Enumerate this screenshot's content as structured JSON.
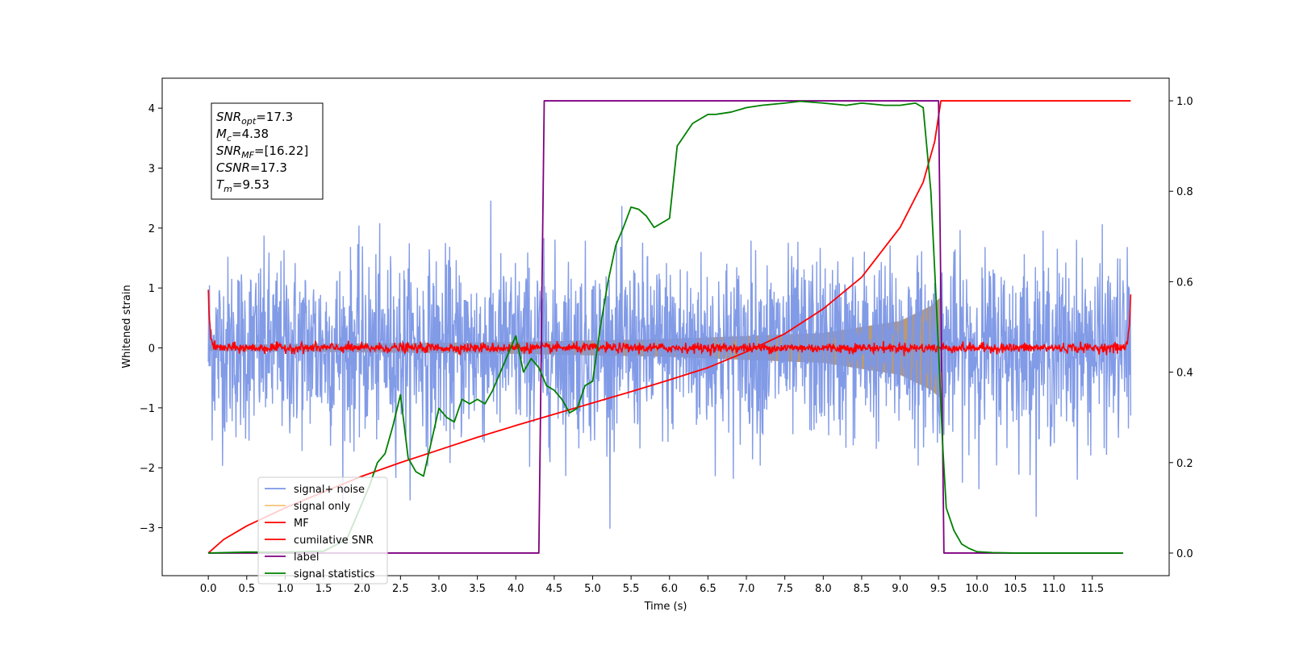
{
  "chart_data": {
    "type": "line",
    "xlabel": "Time (s)",
    "ylabel": "Whitened strain",
    "xlim": [
      -0.6,
      12.5
    ],
    "ylim": [
      -3.8,
      4.5
    ],
    "y2lim": [
      -0.05,
      1.05
    ],
    "x_ticks": [
      0.0,
      0.5,
      1.0,
      1.5,
      2.0,
      2.5,
      3.0,
      3.5,
      4.0,
      4.5,
      5.0,
      5.5,
      6.0,
      6.5,
      7.0,
      7.5,
      8.0,
      8.5,
      9.0,
      9.5,
      10.0,
      10.5,
      11.0,
      11.5
    ],
    "x_tick_labels": [
      "0.0",
      "0.5",
      "1.0",
      "1.5",
      "2.0",
      "2.5",
      "3.0",
      "3.5",
      "4.0",
      "4.5",
      "5.0",
      "5.5",
      "6.0",
      "6.5",
      "7.0",
      "7.5",
      "8.0",
      "8.5",
      "9.0",
      "9.5",
      "10.0",
      "10.5",
      "11.0",
      "11.5"
    ],
    "y_ticks": [
      -3,
      -2,
      -1,
      0,
      1,
      2,
      3,
      4
    ],
    "y_tick_labels": [
      "−3",
      "−2",
      "−1",
      "0",
      "1",
      "2",
      "3",
      "4"
    ],
    "y2_ticks": [
      0.0,
      0.2,
      0.4,
      0.6,
      0.8,
      1.0
    ],
    "y2_tick_labels": [
      "0.0",
      "0.2",
      "0.4",
      "0.6",
      "0.8",
      "1.0"
    ],
    "grid": false,
    "legend_position": "bottom-left",
    "series": [
      {
        "name": "signal+ noise",
        "color": "#7b96e6",
        "axis": "left",
        "kind": "noise",
        "x_range": [
          0,
          12
        ],
        "amplitude_std": 0.75
      },
      {
        "name": "signal only",
        "color": "#f7c27a",
        "axis": "left",
        "kind": "chirp_envelope",
        "x_range": [
          0,
          9.53
        ],
        "envelope": [
          [
            0,
            0.05
          ],
          [
            4.0,
            0.1
          ],
          [
            6.0,
            0.15
          ],
          [
            8.0,
            0.25
          ],
          [
            9.0,
            0.45
          ],
          [
            9.4,
            0.7
          ],
          [
            9.53,
            0.85
          ]
        ]
      },
      {
        "name": "MF",
        "color": "#ff0000",
        "axis": "left",
        "kind": "noise",
        "x_range": [
          0,
          12
        ],
        "amplitude_std": 0.04,
        "edge_values": [
          [
            0.0,
            1.0
          ],
          [
            12.0,
            0.9
          ]
        ]
      },
      {
        "name": "cumilative SNR",
        "color": "#ff0000",
        "axis": "right",
        "x": [
          0.0,
          0.2,
          0.5,
          1.0,
          1.5,
          2.0,
          2.5,
          3.0,
          3.5,
          4.0,
          4.5,
          5.0,
          5.5,
          6.0,
          6.5,
          7.0,
          7.5,
          8.0,
          8.5,
          9.0,
          9.3,
          9.45,
          9.53,
          10.0,
          12.0
        ],
        "values": [
          0.0,
          0.03,
          0.06,
          0.1,
          0.135,
          0.17,
          0.2,
          0.228,
          0.256,
          0.282,
          0.307,
          0.332,
          0.357,
          0.383,
          0.41,
          0.445,
          0.485,
          0.54,
          0.61,
          0.72,
          0.82,
          0.91,
          1.0,
          1.0,
          1.0
        ]
      },
      {
        "name": "label",
        "color": "#800080",
        "axis": "right",
        "x": [
          0.0,
          4.3,
          4.37,
          9.5,
          9.57,
          11.9
        ],
        "values": [
          0.0,
          0.0,
          1.0,
          1.0,
          0.0,
          0.0
        ]
      },
      {
        "name": "signal statistics",
        "color": "#008000",
        "axis": "right",
        "x": [
          0.0,
          0.5,
          1.0,
          1.5,
          1.8,
          2.0,
          2.1,
          2.2,
          2.25,
          2.3,
          2.4,
          2.5,
          2.6,
          2.7,
          2.8,
          3.0,
          3.1,
          3.2,
          3.3,
          3.4,
          3.5,
          3.6,
          3.7,
          3.8,
          3.9,
          4.0,
          4.1,
          4.2,
          4.3,
          4.4,
          4.5,
          4.6,
          4.7,
          4.8,
          4.9,
          5.0,
          5.1,
          5.2,
          5.3,
          5.4,
          5.5,
          5.6,
          5.7,
          5.8,
          5.9,
          6.0,
          6.1,
          6.2,
          6.3,
          6.4,
          6.5,
          6.6,
          6.8,
          7.0,
          7.2,
          7.5,
          7.7,
          8.0,
          8.3,
          8.5,
          8.8,
          9.0,
          9.2,
          9.3,
          9.4,
          9.5,
          9.55,
          9.6,
          9.7,
          9.8,
          9.9,
          10.0,
          10.2,
          10.5,
          11.0,
          11.9
        ],
        "values": [
          0.0,
          0.002,
          0.002,
          0.004,
          0.03,
          0.11,
          0.15,
          0.2,
          0.21,
          0.22,
          0.28,
          0.35,
          0.21,
          0.18,
          0.17,
          0.32,
          0.3,
          0.29,
          0.34,
          0.33,
          0.34,
          0.33,
          0.36,
          0.4,
          0.44,
          0.48,
          0.4,
          0.43,
          0.41,
          0.37,
          0.36,
          0.34,
          0.31,
          0.32,
          0.37,
          0.38,
          0.5,
          0.6,
          0.68,
          0.72,
          0.765,
          0.76,
          0.745,
          0.72,
          0.73,
          0.74,
          0.9,
          0.925,
          0.95,
          0.96,
          0.97,
          0.97,
          0.975,
          0.985,
          0.99,
          0.995,
          0.999,
          0.995,
          0.99,
          0.995,
          0.99,
          0.99,
          0.995,
          0.985,
          0.8,
          0.45,
          0.25,
          0.1,
          0.05,
          0.02,
          0.01,
          0.003,
          0.001,
          0.0,
          0.0,
          0.0
        ]
      }
    ]
  },
  "legend": {
    "items": [
      {
        "label": "signal+ noise",
        "color": "#7b96e6"
      },
      {
        "label": "signal only",
        "color": "#f7c27a"
      },
      {
        "label": "MF",
        "color": "#ff0000"
      },
      {
        "label": "cumilative SNR",
        "color": "#ff0000"
      },
      {
        "label": "label",
        "color": "#800080"
      },
      {
        "label": "signal statistics",
        "color": "#008000"
      }
    ]
  },
  "info_box": {
    "lines": [
      {
        "name": "SNR",
        "sub": "opt",
        "value": "=17.3"
      },
      {
        "name": "M",
        "sub": "c",
        "value": "=4.38"
      },
      {
        "name": "SNR",
        "sub": "MF",
        "value": "=[16.22]"
      },
      {
        "name": "CSNR",
        "sub": "",
        "value": "=17.3"
      },
      {
        "name": "T",
        "sub": "m",
        "value": "=9.53"
      }
    ]
  },
  "colors": {
    "signal_fill": "#b99a75"
  }
}
